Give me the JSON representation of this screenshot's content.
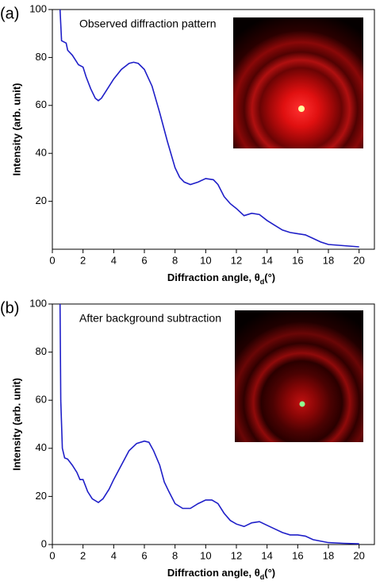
{
  "chart_data": [
    {
      "type": "line",
      "panel_label": "(a)",
      "annotation": "Observed diffraction pattern",
      "xlabel": {
        "text": "Diffraction angle, θ",
        "subscript": "d",
        "suffix": "(°)"
      },
      "ylabel": "Intensity (arb. unit)",
      "color": "#1f1fc8",
      "x": [
        0.5,
        0.6,
        0.9,
        1.0,
        1.3,
        1.5,
        1.7,
        2.0,
        2.2,
        2.5,
        2.8,
        3.0,
        3.2,
        3.5,
        4.0,
        4.5,
        5.0,
        5.3,
        5.6,
        6.0,
        6.5,
        7.0,
        7.5,
        8.0,
        8.3,
        8.6,
        9.0,
        9.5,
        10.0,
        10.5,
        10.8,
        11.2,
        11.6,
        12.0,
        12.5,
        13.0,
        13.5,
        14.0,
        14.5,
        15.0,
        15.5,
        16.0,
        16.5,
        17.0,
        17.5,
        18.0,
        19.0,
        20.0
      ],
      "values": [
        100,
        87,
        86,
        83,
        81,
        79,
        77,
        76,
        72,
        67,
        63,
        62,
        63,
        66,
        71,
        75,
        77.5,
        78,
        77.5,
        75,
        68,
        57,
        45,
        34,
        30,
        28,
        27,
        28,
        29.5,
        29,
        27,
        22,
        19,
        17,
        14,
        15,
        14.5,
        12,
        10,
        8,
        7,
        6.5,
        6,
        4.5,
        3,
        2,
        1.5,
        1
      ],
      "xlim": [
        0,
        21
      ],
      "ylim": [
        0,
        100
      ],
      "xticks": [
        0,
        2,
        4,
        6,
        8,
        10,
        12,
        14,
        16,
        18,
        20
      ],
      "yticks": [
        20,
        40,
        60,
        80,
        100
      ]
    },
    {
      "type": "line",
      "panel_label": "(b)",
      "annotation": "After background subtraction",
      "xlabel": {
        "text": "Diffraction angle, θ",
        "subscript": "d",
        "suffix": "(°)"
      },
      "ylabel": "Intensity (arb. unit)",
      "color": "#1f1fc8",
      "x": [
        0.5,
        0.55,
        0.65,
        0.8,
        1.0,
        1.3,
        1.6,
        1.8,
        2.0,
        2.3,
        2.6,
        3.0,
        3.3,
        3.7,
        4.0,
        4.5,
        5.0,
        5.5,
        6.0,
        6.3,
        6.6,
        7.0,
        7.3,
        7.6,
        8.0,
        8.5,
        9.0,
        9.5,
        10.0,
        10.4,
        10.8,
        11.2,
        11.6,
        12.0,
        12.5,
        13.0,
        13.5,
        14.0,
        14.5,
        15.0,
        15.5,
        16.0,
        16.5,
        17.0,
        18.0,
        19.0,
        20.0
      ],
      "values": [
        100,
        60,
        40,
        36,
        35.5,
        33,
        30,
        27,
        27,
        22,
        19,
        17.5,
        19,
        23,
        27,
        33,
        39,
        42,
        43,
        42.5,
        39,
        33,
        26,
        22,
        17,
        15,
        15,
        17,
        18.5,
        18.5,
        17,
        13,
        10,
        8.5,
        7.5,
        9,
        9.5,
        8,
        6.5,
        5,
        4,
        4,
        3.5,
        2,
        0.8,
        0.5,
        0.3
      ],
      "xlim": [
        0,
        21
      ],
      "ylim": [
        0,
        100
      ],
      "xticks": [
        0,
        2,
        4,
        6,
        8,
        10,
        12,
        14,
        16,
        18,
        20
      ],
      "yticks": [
        0,
        20,
        40,
        60,
        80,
        100
      ]
    }
  ]
}
